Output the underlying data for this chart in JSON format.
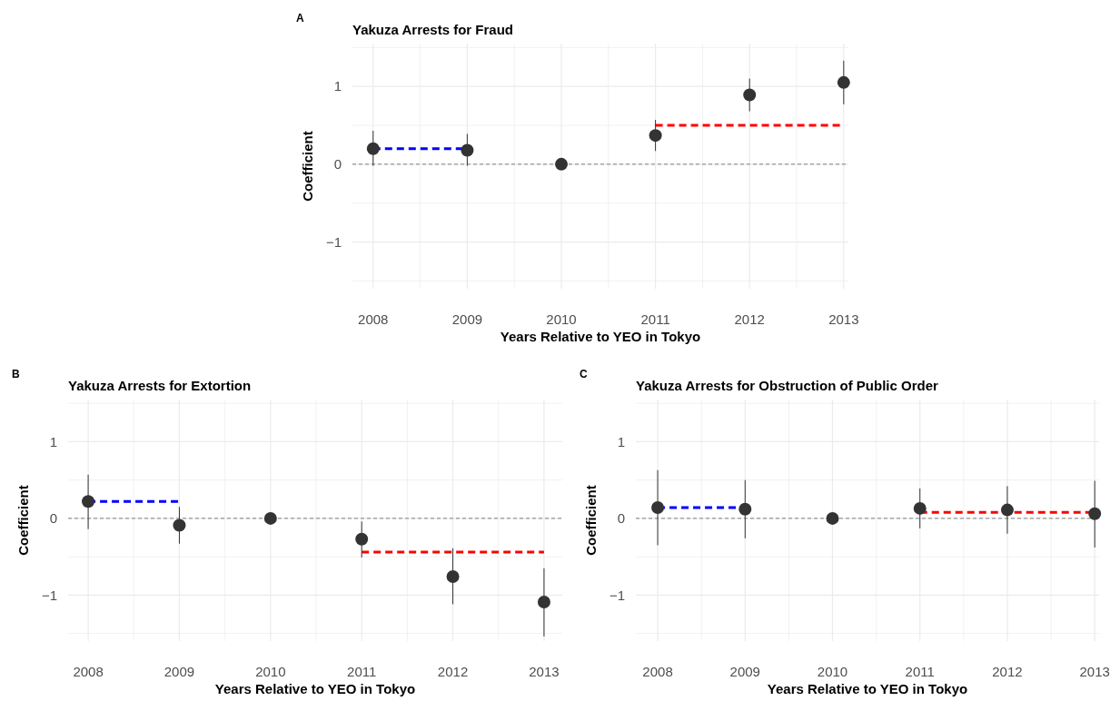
{
  "chart_data": [
    {
      "type": "scatter",
      "title": "Yakuza Arrests for Fraud",
      "xlabel": "Years Relative to YEO in Tokyo",
      "ylabel": "Coefficient",
      "annotations": [
        "A"
      ],
      "x": [
        2008,
        2009,
        2010,
        2011,
        2012,
        2013
      ],
      "xlim": [
        2007.78,
        2013.05
      ],
      "xticks": [
        2008,
        {
          "value": 2008.5,
          "label": null
        },
        2009,
        {
          "value": 2009.5,
          "label": null
        },
        2010,
        {
          "value": 2010.5,
          "label": null
        },
        2011,
        {
          "value": 2011.5,
          "label": null
        },
        2012,
        {
          "value": 2012.5,
          "label": null
        },
        2013
      ],
      "ylim": [
        -1.6,
        1.55
      ],
      "yticks": [
        {
          "value": -1.5,
          "label": null
        },
        {
          "value": -1,
          "label": "−1"
        },
        {
          "value": -0.5,
          "label": null
        },
        {
          "value": 0,
          "label": "0"
        },
        {
          "value": 0.5,
          "label": null
        },
        {
          "value": 1,
          "label": "1"
        },
        {
          "value": 1.5,
          "label": null
        }
      ],
      "grid": true,
      "ref_lines": [
        {
          "axis": "y",
          "value": 0,
          "color": "#808080",
          "line_style": "dashed"
        }
      ],
      "series": [
        {
          "type": "line",
          "x": [
            2008,
            2009
          ],
          "values": [
            0.2,
            0.2
          ],
          "color": "#0000ff",
          "line_style": "dashed"
        },
        {
          "type": "line",
          "x": [
            2011,
            2013
          ],
          "values": [
            0.5,
            0.5
          ],
          "color": "#ff0000",
          "line_style": "dashed"
        },
        {
          "marker": "circle",
          "color": "#333333",
          "values": [
            0.2,
            0.18,
            0,
            0.37,
            0.89,
            1.05
          ],
          "errors": [
            [
              -0.02,
              0.43
            ],
            [
              -0.02,
              0.39
            ],
            null,
            [
              0.17,
              0.57
            ],
            [
              0.68,
              1.1
            ],
            [
              0.77,
              1.33
            ]
          ]
        }
      ]
    },
    {
      "type": "scatter",
      "title": "Yakuza Arrests for Extortion",
      "xlabel": "Years Relative to YEO in Tokyo",
      "ylabel": "Coefficient",
      "annotations": [
        "B"
      ],
      "x": [
        2008,
        2009,
        2010,
        2011,
        2012,
        2013
      ],
      "xlim": [
        2007.78,
        2013.2
      ],
      "xticks": [
        2008,
        {
          "value": 2008.5,
          "label": null
        },
        2009,
        {
          "value": 2009.5,
          "label": null
        },
        2010,
        {
          "value": 2010.5,
          "label": null
        },
        2011,
        {
          "value": 2011.5,
          "label": null
        },
        2012,
        {
          "value": 2012.5,
          "label": null
        },
        2013
      ],
      "ylim": [
        -1.6,
        1.55
      ],
      "yticks": [
        {
          "value": -1.5,
          "label": null
        },
        {
          "value": -1,
          "label": "−1"
        },
        {
          "value": -0.5,
          "label": null
        },
        {
          "value": 0,
          "label": "0"
        },
        {
          "value": 0.5,
          "label": null
        },
        {
          "value": 1,
          "label": "1"
        },
        {
          "value": 1.5,
          "label": null
        }
      ],
      "grid": true,
      "ref_lines": [
        {
          "axis": "y",
          "value": 0,
          "color": "#808080",
          "line_style": "dashed"
        }
      ],
      "series": [
        {
          "type": "line",
          "x": [
            2008,
            2009
          ],
          "values": [
            0.22,
            0.22
          ],
          "color": "#0000ff",
          "line_style": "dashed"
        },
        {
          "type": "line",
          "x": [
            2011,
            2013
          ],
          "values": [
            -0.44,
            -0.44
          ],
          "color": "#ff0000",
          "line_style": "dashed"
        },
        {
          "marker": "circle",
          "color": "#333333",
          "values": [
            0.22,
            -0.09,
            0,
            -0.27,
            -0.76,
            -1.09
          ],
          "errors": [
            [
              -0.14,
              0.57
            ],
            [
              -0.33,
              0.15
            ],
            null,
            [
              -0.51,
              -0.04
            ],
            [
              -1.12,
              -0.39
            ],
            [
              -1.54,
              -0.65
            ]
          ]
        }
      ]
    },
    {
      "type": "scatter",
      "title": "Yakuza Arrests for Obstruction of Public Order",
      "xlabel": "Years Relative to YEO in Tokyo",
      "ylabel": "Coefficient",
      "annotations": [
        "C"
      ],
      "x": [
        2008,
        2009,
        2010,
        2011,
        2012,
        2013
      ],
      "xlim": [
        2007.75,
        2013.05
      ],
      "xticks": [
        2008,
        {
          "value": 2008.5,
          "label": null
        },
        2009,
        {
          "value": 2009.5,
          "label": null
        },
        2010,
        {
          "value": 2010.5,
          "label": null
        },
        2011,
        {
          "value": 2011.5,
          "label": null
        },
        2012,
        {
          "value": 2012.5,
          "label": null
        },
        2013
      ],
      "ylim": [
        -1.6,
        1.55
      ],
      "yticks": [
        {
          "value": -1.5,
          "label": null
        },
        {
          "value": -1,
          "label": "−1"
        },
        {
          "value": -0.5,
          "label": null
        },
        {
          "value": 0,
          "label": "0"
        },
        {
          "value": 0.5,
          "label": null
        },
        {
          "value": 1,
          "label": "1"
        },
        {
          "value": 1.5,
          "label": null
        }
      ],
      "grid": true,
      "ref_lines": [
        {
          "axis": "y",
          "value": 0,
          "color": "#808080",
          "line_style": "dashed"
        }
      ],
      "series": [
        {
          "type": "line",
          "x": [
            2008,
            2009
          ],
          "values": [
            0.14,
            0.14
          ],
          "color": "#0000ff",
          "line_style": "dashed"
        },
        {
          "type": "line",
          "x": [
            2011,
            2013
          ],
          "values": [
            0.08,
            0.08
          ],
          "color": "#ff0000",
          "line_style": "dashed"
        },
        {
          "marker": "circle",
          "color": "#333333",
          "values": [
            0.14,
            0.12,
            0,
            0.13,
            0.11,
            0.06
          ],
          "errors": [
            [
              -0.35,
              0.63
            ],
            [
              -0.26,
              0.5
            ],
            null,
            [
              -0.13,
              0.39
            ],
            [
              -0.2,
              0.42
            ],
            [
              -0.38,
              0.49
            ]
          ]
        }
      ]
    }
  ]
}
